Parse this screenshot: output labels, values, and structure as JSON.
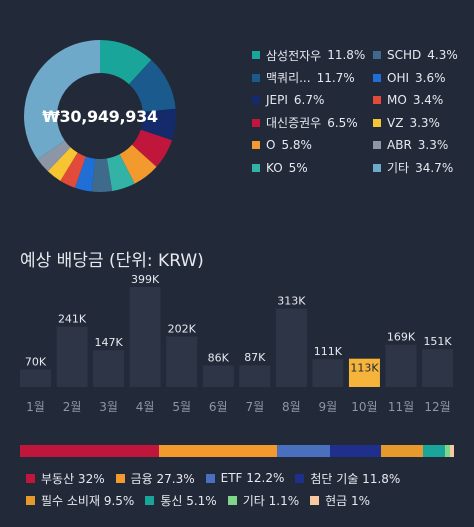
{
  "total": "₩30,949,934",
  "holdings": [
    {
      "name": "삼성전자우",
      "pct": "11.8%",
      "value": 11.8,
      "color": "#1aa59a"
    },
    {
      "name": "맥쿼리...",
      "pct": "11.7%",
      "value": 11.7,
      "color": "#1b5a8c"
    },
    {
      "name": "JEPI",
      "pct": "6.7%",
      "value": 6.7,
      "color": "#142a6b"
    },
    {
      "name": "대신증권우",
      "pct": "6.5%",
      "value": 6.5,
      "color": "#c0163c"
    },
    {
      "name": "O",
      "pct": "5.8%",
      "value": 5.8,
      "color": "#f29a2e"
    },
    {
      "name": "KO",
      "pct": "5%",
      "value": 5.0,
      "color": "#33b3a6"
    },
    {
      "name": "SCHD",
      "pct": "4.3%",
      "value": 4.3,
      "color": "#406a8c"
    },
    {
      "name": "OHI",
      "pct": "3.6%",
      "value": 3.6,
      "color": "#1f6fd6"
    },
    {
      "name": "MO",
      "pct": "3.4%",
      "value": 3.4,
      "color": "#e24a3a"
    },
    {
      "name": "VZ",
      "pct": "3.3%",
      "value": 3.3,
      "color": "#f7c531"
    },
    {
      "name": "ABR",
      "pct": "3.3%",
      "value": 3.3,
      "color": "#8c96a6"
    },
    {
      "name": "기타",
      "pct": "34.7%",
      "value": 34.7,
      "color": "#6fa9c9"
    }
  ],
  "dividend": {
    "title": "예상 배당금 (단위: KRW)",
    "chart_data": {
      "type": "bar",
      "categories": [
        "1월",
        "2월",
        "3월",
        "4월",
        "5월",
        "6월",
        "7월",
        "8월",
        "9월",
        "10월",
        "11월",
        "12월"
      ],
      "values": [
        70000,
        241000,
        147000,
        399000,
        202000,
        86000,
        87000,
        313000,
        111000,
        113000,
        169000,
        151000
      ],
      "labels": [
        "70K",
        "241K",
        "147K",
        "399K",
        "202K",
        "86K",
        "87K",
        "313K",
        "111K",
        "113K",
        "169K",
        "151K"
      ],
      "highlight_index": 9,
      "bar_color": "#2d3546",
      "highlight_color": "#f6b53a"
    }
  },
  "allocation": [
    {
      "name": "부동산",
      "pct": "32%",
      "value": 32,
      "color": "#c0163c"
    },
    {
      "name": "금융",
      "pct": "27.3%",
      "value": 27.3,
      "color": "#f29a2e"
    },
    {
      "name": "ETF",
      "pct": "12.2%",
      "value": 12.2,
      "color": "#4a6fbf"
    },
    {
      "name": "첨단 기술",
      "pct": "11.8%",
      "value": 11.8,
      "color": "#1f2f8c"
    },
    {
      "name": "필수 소비재",
      "pct": "9.5%",
      "value": 9.5,
      "color": "#e79a2b"
    },
    {
      "name": "통신",
      "pct": "5.1%",
      "value": 5.1,
      "color": "#1aa59a"
    },
    {
      "name": "기타",
      "pct": "1.1%",
      "value": 1.1,
      "color": "#7fd68a"
    },
    {
      "name": "현금",
      "pct": "1%",
      "value": 1.0,
      "color": "#f6c9a0"
    }
  ]
}
